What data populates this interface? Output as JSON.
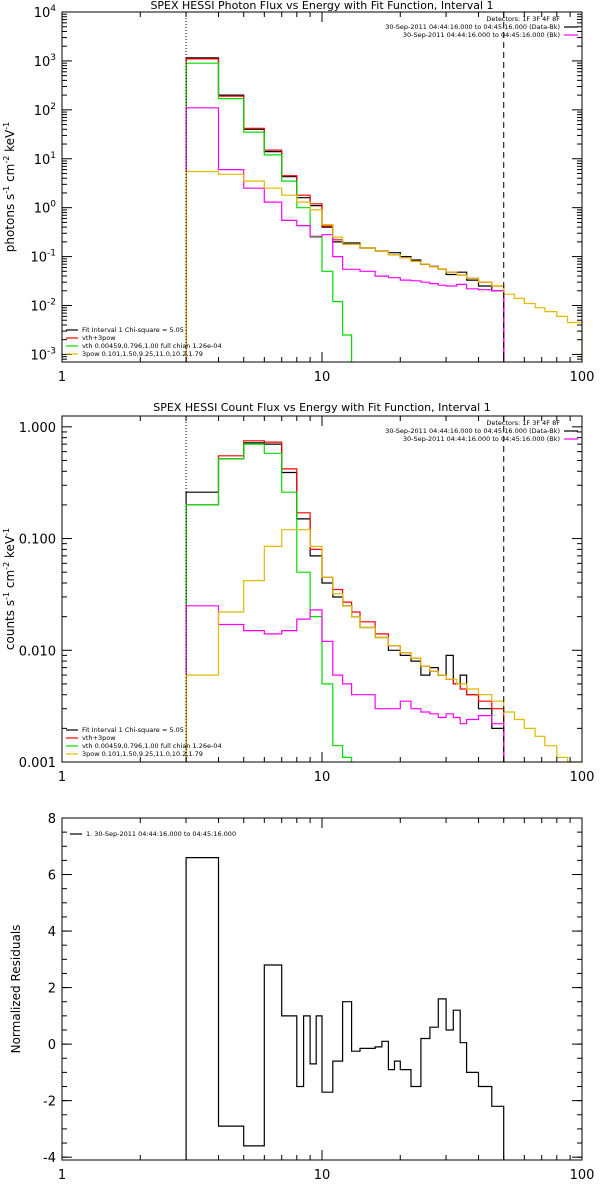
{
  "chart_data": [
    {
      "type": "line",
      "title": "SPEX HESSI Photon Flux vs Energy with Fit Function, Interval 1",
      "ylabel": "photons s^-1 cm^-2 keV^-1",
      "xscale": "log",
      "yscale": "log",
      "xlim": [
        1,
        100
      ],
      "ylim": [
        0.0007,
        10000
      ],
      "xticks": [
        {
          "v": 1,
          "label": "1"
        },
        {
          "v": 10,
          "label": "10"
        },
        {
          "v": 100,
          "label": "100"
        }
      ],
      "yticks": [
        {
          "v": 0.001,
          "label": "10^-3"
        },
        {
          "v": 0.01,
          "label": "10^-2"
        },
        {
          "v": 0.1,
          "label": "10^-1"
        },
        {
          "v": 1,
          "label": "10^0"
        },
        {
          "v": 10,
          "label": "10^1"
        },
        {
          "v": 100,
          "label": "10^2"
        },
        {
          "v": 1000,
          "label": "10^3"
        },
        {
          "v": 10000,
          "label": "10^4"
        }
      ],
      "vlines": [
        {
          "x": 3,
          "style": "dotted"
        },
        {
          "x": 50,
          "style": "dashed"
        }
      ],
      "legend_topright": {
        "lines": [
          "Detectors: 1F 3F 4F 8F",
          "30-Sep-2011 04:44:16.000 to 04:45:16.000 (Data-Bk)",
          "30-Sep-2011 04:44:16.000 to 04:45:16.000 (Bk)"
        ],
        "colors": [
          "#000000",
          "#000000",
          "#ff00ff"
        ]
      },
      "legend_bottomleft": {
        "lines": [
          "Fit Interval 1    Chi-square = 5.05",
          "vth+3pow",
          "vth 0.00459,0.796,1.00  full chian 1.26e-04",
          "3pow 0.101,1.50,9.25,11.0,10.2,1.79"
        ],
        "colors": [
          "#000000",
          "#ff0000",
          "#00dd00",
          "#ddbb00"
        ]
      },
      "series": [
        {
          "name": "30-Sep-2011 04:44:16.000 to 04:45:16.000 (Data-Bk)",
          "color": "#000000",
          "edges": [
            3,
            4,
            5,
            6,
            7,
            8,
            9,
            10,
            11,
            12,
            14,
            16,
            18,
            20,
            22,
            24,
            26,
            28,
            30,
            33,
            36,
            40,
            45,
            50
          ],
          "values": [
            1150,
            200,
            40,
            14,
            4.3,
            1.6,
            1.1,
            0.4,
            0.2,
            0.19,
            0.15,
            0.13,
            0.12,
            0.1,
            0.085,
            0.07,
            0.063,
            0.055,
            0.043,
            0.048,
            0.033,
            0.025,
            0.02
          ]
        },
        {
          "name": "vth+3pow",
          "color": "#ff0000",
          "edges": [
            3,
            4,
            5,
            6,
            7,
            8,
            9,
            10,
            11,
            12,
            14,
            16,
            18,
            20,
            22,
            24,
            26,
            28,
            30,
            33,
            36,
            40,
            45,
            50
          ],
          "values": [
            1100,
            190,
            42,
            15,
            4.5,
            1.8,
            1.2,
            0.42,
            0.22,
            0.18,
            0.15,
            0.13,
            0.11,
            0.095,
            0.08,
            0.07,
            0.062,
            0.055,
            0.048,
            0.042,
            0.036,
            0.03,
            0.025
          ]
        },
        {
          "name": "vth 0.00459,0.796,1.00  full chian 1.26e-04",
          "color": "#00dd00",
          "edges": [
            3,
            4,
            5,
            6,
            7,
            8,
            9,
            10,
            11,
            12,
            13
          ],
          "values": [
            900,
            170,
            35,
            12,
            3.5,
            1.0,
            0.25,
            0.05,
            0.012,
            0.0025
          ]
        },
        {
          "name": "Bk",
          "color": "#ff00ff",
          "edges": [
            3,
            4,
            5,
            6,
            7,
            8,
            9,
            10,
            11,
            12,
            14,
            16,
            18,
            20,
            22,
            24,
            26,
            28,
            30,
            33,
            36,
            40,
            45,
            50
          ],
          "values": [
            110,
            6,
            2.5,
            1.3,
            0.55,
            0.43,
            0.26,
            0.28,
            0.1,
            0.055,
            0.05,
            0.04,
            0.037,
            0.033,
            0.032,
            0.03,
            0.028,
            0.026,
            0.025,
            0.027,
            0.022,
            0.021,
            0.02
          ]
        },
        {
          "name": "3pow 0.101,1.50,9.25,11.0,10.2,1.79",
          "color": "#ddbb00",
          "edges": [
            3,
            4,
            5,
            6,
            7,
            8,
            9,
            10,
            11,
            12,
            14,
            16,
            18,
            20,
            22,
            24,
            26,
            28,
            30,
            33,
            36,
            40,
            45,
            50,
            55,
            60,
            66,
            72,
            80,
            88,
            100
          ],
          "values": [
            5.5,
            4.8,
            3.5,
            2.5,
            1.8,
            1.3,
            0.9,
            0.45,
            0.25,
            0.18,
            0.15,
            0.13,
            0.11,
            0.095,
            0.08,
            0.07,
            0.062,
            0.055,
            0.048,
            0.042,
            0.036,
            0.03,
            0.025,
            0.017,
            0.014,
            0.011,
            0.009,
            0.0075,
            0.006,
            0.0045
          ]
        }
      ]
    },
    {
      "type": "line",
      "title": "SPEX HESSI Count Flux vs Energy with Fit Function, Interval 1",
      "ylabel": "counts s^-1 cm^-2 keV^-1",
      "xscale": "log",
      "yscale": "log",
      "xlim": [
        1,
        100
      ],
      "ylim": [
        0.001,
        1.25
      ],
      "xticks": [
        {
          "v": 1,
          "label": "1"
        },
        {
          "v": 10,
          "label": "10"
        },
        {
          "v": 100,
          "label": "100"
        }
      ],
      "yticks": [
        {
          "v": 0.001,
          "label": "0.001"
        },
        {
          "v": 0.01,
          "label": "0.010"
        },
        {
          "v": 0.1,
          "label": "0.100"
        },
        {
          "v": 1,
          "label": "1.000"
        }
      ],
      "vlines": [
        {
          "x": 3,
          "style": "dotted"
        },
        {
          "x": 50,
          "style": "dashed"
        }
      ],
      "legend_topright": {
        "lines": [
          "Detectors: 1F 3F 4F 8F",
          "30-Sep-2011 04:44:16.000 to 04:45:16.000 (Data-Bk)",
          "30-Sep-2011 04:44:16.000 to 04:45:16.000 (Bk)"
        ],
        "colors": [
          "#000000",
          "#000000",
          "#ff00ff"
        ]
      },
      "legend_bottomleft": {
        "lines": [
          "Fit Interval 1    Chi-square = 5.05",
          "vth+3pow",
          "vth 0.00459,0.796,1.00  full chian 1.26e-04",
          "3pow 0.101,1.50,9.25,11.0,10.2,1.79"
        ],
        "colors": [
          "#000000",
          "#ff0000",
          "#00dd00",
          "#ddbb00"
        ]
      },
      "series": [
        {
          "name": "30-Sep-2011 04:44:16.000 to 04:45:16.000 (Data-Bk)",
          "color": "#000000",
          "edges": [
            3,
            4,
            5,
            6,
            7,
            8,
            9,
            10,
            11,
            12,
            13,
            14,
            16,
            18,
            20,
            22,
            24,
            26,
            28,
            30,
            32,
            34,
            36,
            40,
            45,
            50
          ],
          "values": [
            0.26,
            0.52,
            0.72,
            0.7,
            0.39,
            0.15,
            0.07,
            0.04,
            0.03,
            0.025,
            0.02,
            0.016,
            0.013,
            0.01,
            0.009,
            0.008,
            0.006,
            0.007,
            0.006,
            0.009,
            0.005,
            0.006,
            0.004,
            0.003,
            0.002
          ]
        },
        {
          "name": "vth+3pow",
          "color": "#ff0000",
          "edges": [
            3,
            4,
            5,
            6,
            7,
            8,
            9,
            10,
            11,
            12,
            13,
            14,
            16,
            18,
            20,
            22,
            24,
            26,
            28,
            30,
            32,
            34,
            36,
            40,
            45,
            50
          ],
          "values": [
            0.2,
            0.55,
            0.75,
            0.73,
            0.42,
            0.17,
            0.08,
            0.045,
            0.035,
            0.027,
            0.022,
            0.018,
            0.014,
            0.011,
            0.0095,
            0.0085,
            0.0072,
            0.0065,
            0.006,
            0.0055,
            0.005,
            0.0045,
            0.004,
            0.0035,
            0.003
          ]
        },
        {
          "name": "vth 0.00459,0.796,1.00  full chian 1.26e-04",
          "color": "#00dd00",
          "edges": [
            3,
            4,
            5,
            6,
            7,
            8,
            9,
            10,
            11,
            12,
            13
          ],
          "values": [
            0.2,
            0.52,
            0.7,
            0.58,
            0.26,
            0.05,
            0.02,
            0.005,
            0.0014,
            0.0011
          ]
        },
        {
          "name": "Bk",
          "color": "#ff00ff",
          "edges": [
            3,
            4,
            5,
            6,
            7,
            8,
            9,
            10,
            11,
            12,
            13,
            14,
            16,
            18,
            20,
            22,
            24,
            26,
            28,
            30,
            32,
            34,
            36,
            40,
            45,
            50
          ],
          "values": [
            0.025,
            0.017,
            0.015,
            0.014,
            0.015,
            0.019,
            0.023,
            0.012,
            0.006,
            0.005,
            0.004,
            0.004,
            0.003,
            0.003,
            0.0035,
            0.003,
            0.0028,
            0.0027,
            0.0025,
            0.0027,
            0.0025,
            0.0022,
            0.0024,
            0.0026,
            0.0022
          ]
        },
        {
          "name": "3pow 0.101,1.50,9.25,11.0,10.2,1.79",
          "color": "#ddbb00",
          "edges": [
            3,
            4,
            5,
            6,
            7,
            8,
            9,
            10,
            11,
            12,
            13,
            14,
            16,
            18,
            20,
            22,
            24,
            26,
            28,
            30,
            33,
            36,
            40,
            45,
            50,
            55,
            60,
            66,
            72,
            80,
            88,
            100
          ],
          "values": [
            0.006,
            0.022,
            0.042,
            0.085,
            0.12,
            0.12,
            0.085,
            0.045,
            0.032,
            0.025,
            0.02,
            0.016,
            0.013,
            0.011,
            0.0095,
            0.0085,
            0.0072,
            0.0065,
            0.006,
            0.0055,
            0.005,
            0.0045,
            0.004,
            0.0035,
            0.0028,
            0.0024,
            0.002,
            0.0017,
            0.0014,
            0.0011,
            0.0009
          ]
        }
      ]
    },
    {
      "type": "line",
      "title": "",
      "ylabel": "Normalized Residuals",
      "xscale": "log",
      "yscale": "linear",
      "xlim": [
        1,
        100
      ],
      "ylim": [
        -4.1,
        8
      ],
      "xticks": [
        {
          "v": 1,
          "label": "1"
        },
        {
          "v": 10,
          "label": "10"
        },
        {
          "v": 100,
          "label": "100"
        }
      ],
      "yticks": [
        {
          "v": -4,
          "label": "-4"
        },
        {
          "v": -2,
          "label": "-2"
        },
        {
          "v": 0,
          "label": "0"
        },
        {
          "v": 2,
          "label": "2"
        },
        {
          "v": 4,
          "label": "4"
        },
        {
          "v": 6,
          "label": "6"
        },
        {
          "v": 8,
          "label": "8"
        }
      ],
      "legend_topleft": {
        "lines": [
          "1. 30-Sep-2011 04:44:16.000 to 04:45:16.000"
        ],
        "colors": [
          "#000000"
        ]
      },
      "series": [
        {
          "name": "1. 30-Sep-2011 04:44:16.000 to 04:45:16.000",
          "color": "#000000",
          "edges": [
            3,
            4,
            5,
            6,
            7,
            8,
            8.5,
            9,
            9.5,
            10,
            11,
            12,
            13,
            14,
            15,
            16,
            17,
            18,
            19,
            20,
            22,
            24,
            26,
            28,
            30,
            32,
            34,
            36,
            40,
            45,
            50
          ],
          "values": [
            6.6,
            -2.9,
            -3.6,
            2.8,
            1.0,
            -1.5,
            1.0,
            -0.7,
            1.0,
            -1.7,
            -0.6,
            1.5,
            -0.25,
            -0.15,
            -0.15,
            -0.1,
            0.1,
            -0.9,
            -0.6,
            -0.9,
            -1.5,
            0.2,
            0.6,
            1.6,
            0.5,
            1.2,
            0.05,
            -1.0,
            -1.5,
            -2.2
          ]
        }
      ]
    }
  ]
}
